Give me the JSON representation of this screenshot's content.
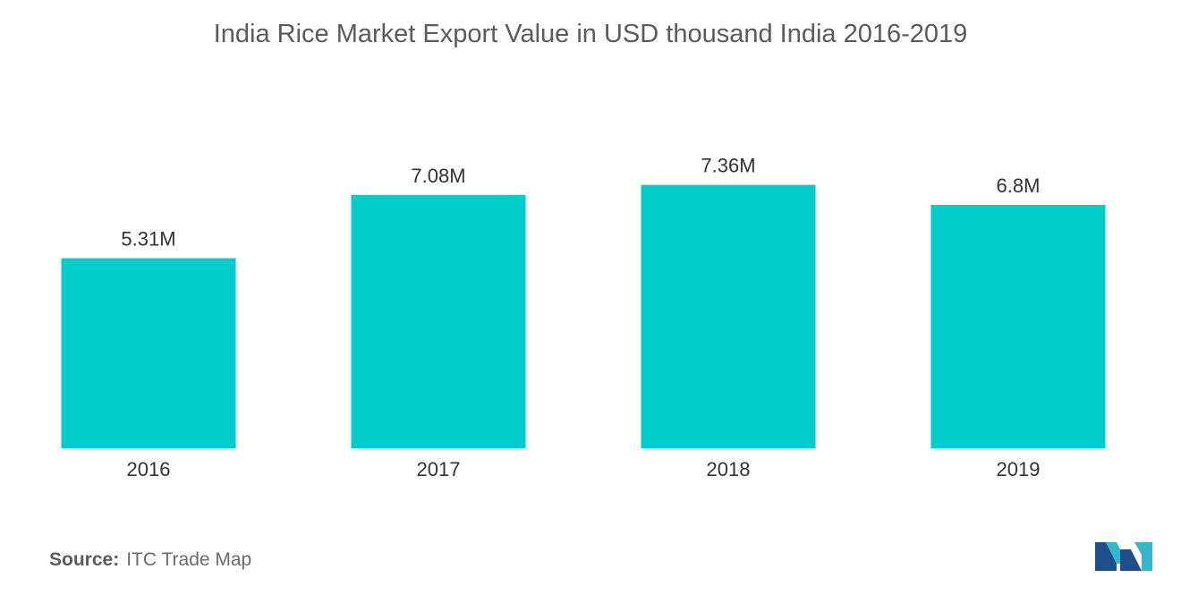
{
  "chart_data": {
    "type": "bar",
    "title": "India Rice Market  Export Value in USD thousand India 2016-2019",
    "categories": [
      "2016",
      "2017",
      "2018",
      "2019"
    ],
    "values": [
      5.31,
      7.08,
      7.36,
      6.8
    ],
    "data_labels": [
      "5.31M",
      "7.08M",
      "7.36M",
      "6.8M"
    ],
    "xlabel": "",
    "ylabel": "",
    "ylim": [
      0,
      10
    ],
    "grid": false,
    "legend": "none",
    "bar_color": "#00cccc"
  },
  "source": {
    "label": "Source:",
    "text": "ITC Trade Map"
  },
  "colors": {
    "title": "#5b5b5b",
    "logo_dark": "#1f4e8c",
    "logo_light": "#35b6c9"
  }
}
